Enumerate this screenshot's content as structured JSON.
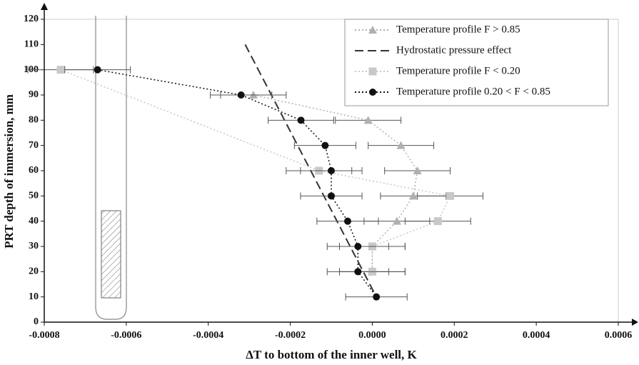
{
  "chart_data": {
    "type": "scatter",
    "xlabel": "ΔT to bottom of the inner well, K",
    "ylabel": "PRT depth of immersion, mm",
    "xlim": [
      -0.0008,
      0.0006
    ],
    "xticks": [
      -0.0008,
      -0.0006,
      -0.0004,
      -0.0002,
      {
        "value": 0,
        "label": "0.0000"
      },
      0.0002,
      0.0004,
      0.0006
    ],
    "ylim": [
      0,
      120
    ],
    "yticks": [
      0,
      10,
      20,
      30,
      40,
      50,
      60,
      70,
      80,
      90,
      100,
      110,
      120
    ],
    "series": [
      {
        "name": "Temperature profile F > 0.85",
        "color": "#b0b0b0",
        "marker": "triangle",
        "dash": "dot",
        "x": [
          -0.00029,
          -1e-05,
          7e-05,
          0.00011,
          0.0001,
          6e-05,
          0,
          0
        ],
        "y": [
          90,
          80,
          70,
          60,
          50,
          40,
          30,
          20
        ],
        "errors": [
          8e-05,
          8e-05,
          8e-05,
          8e-05,
          8e-05,
          8e-05,
          8e-05,
          8e-05
        ]
      },
      {
        "name": "Hydrostatic pressure effect",
        "color": "#333333",
        "marker": "none",
        "dash": "dash",
        "x": [
          -0.00031,
          1e-05
        ],
        "y": [
          110,
          10
        ]
      },
      {
        "name": "Temperature profile F < 0.20",
        "color": "#c8c8c8",
        "marker": "square",
        "dash": "dot",
        "x": [
          -0.00076,
          -0.00013,
          0.00019,
          0.00016,
          0,
          0
        ],
        "y": [
          100,
          60,
          50,
          40,
          30,
          20
        ],
        "errors": [
          8e-05,
          8e-05,
          8e-05,
          8e-05,
          8e-05,
          8e-05
        ]
      },
      {
        "name": "Temperature profile 0.20 < F <  0.85",
        "color": "#111111",
        "marker": "circle",
        "dash": "dot",
        "x": [
          -0.00067,
          -0.00032,
          -0.000174,
          -0.000115,
          -0.0001,
          -0.0001,
          -6e-05,
          -3.5e-05,
          -3.5e-05,
          1e-05
        ],
        "y": [
          100,
          90,
          80,
          70,
          60,
          50,
          40,
          30,
          20,
          10
        ],
        "errors": [
          8e-05,
          7.5e-05,
          8e-05,
          7.5e-05,
          7.5e-05,
          7.5e-05,
          7.5e-05,
          7.5e-05,
          7.5e-05,
          7.5e-05
        ]
      }
    ]
  }
}
